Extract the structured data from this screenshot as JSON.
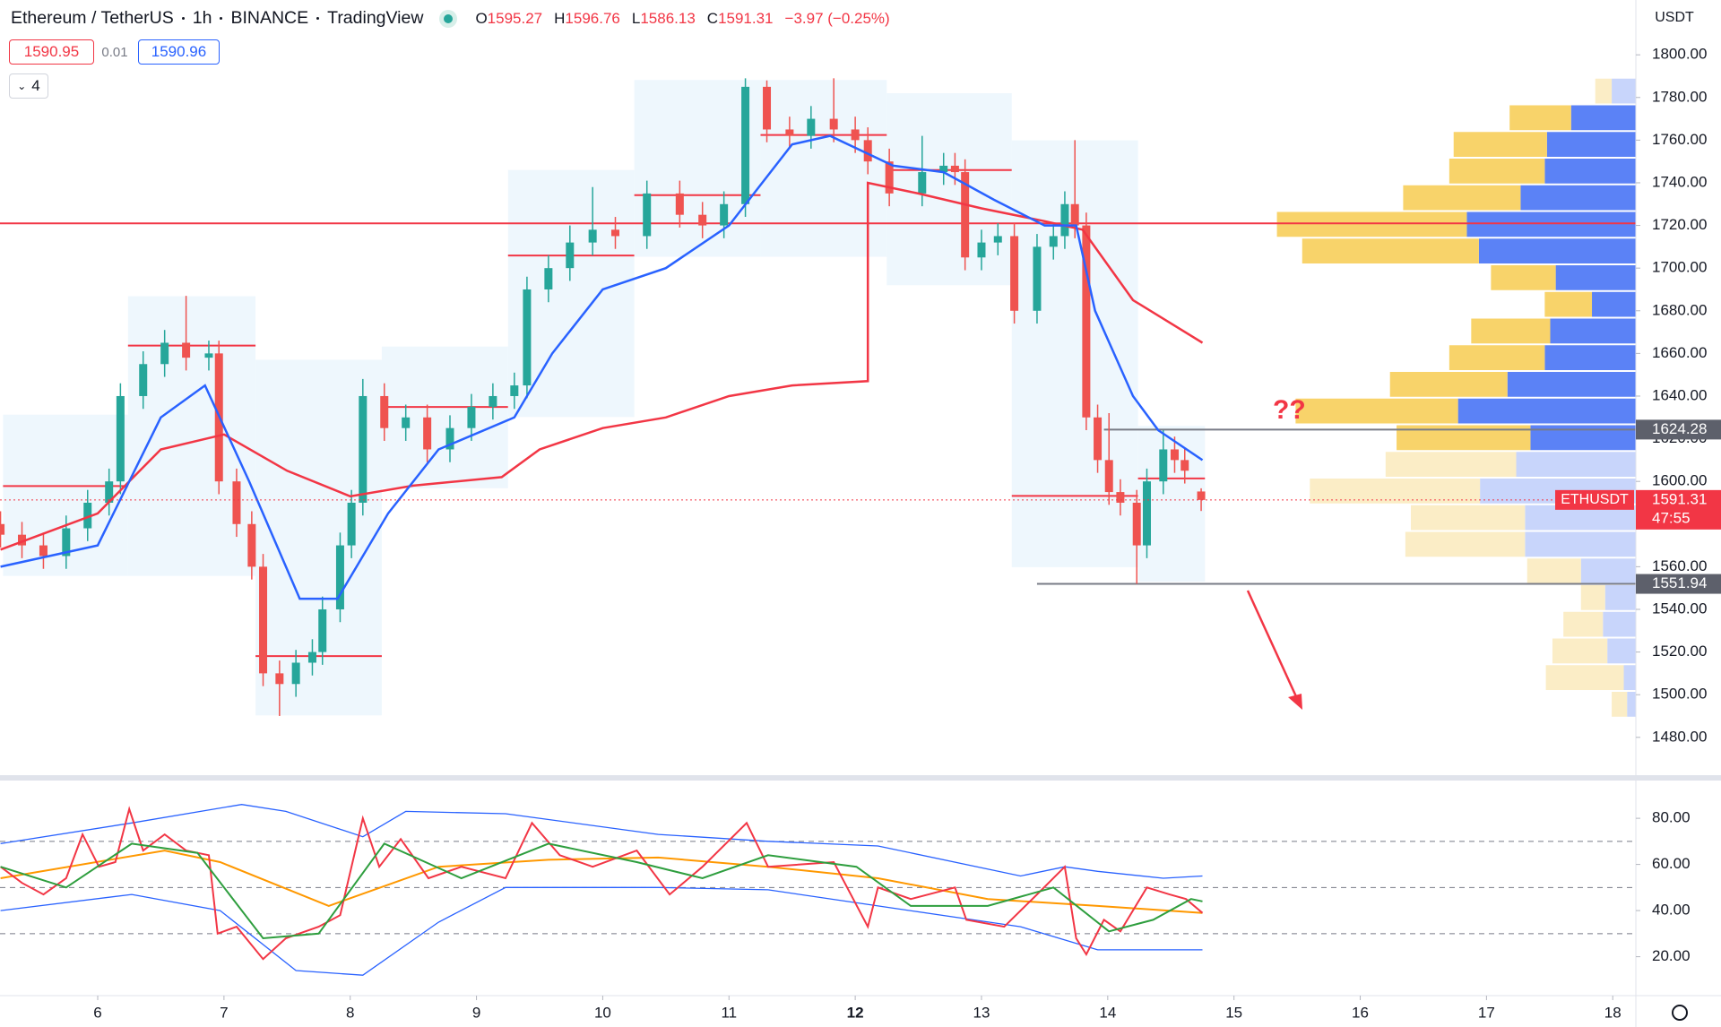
{
  "header": {
    "symbol": "Ethereum / TetherUS",
    "interval": "1h",
    "exchange": "BINANCE",
    "source": "TradingView",
    "ohlc": [
      {
        "key": "O",
        "value": 1595.27
      },
      {
        "key": "H",
        "value": 1596.76
      },
      {
        "key": "L",
        "value": 1586.13
      },
      {
        "key": "C",
        "value": 1591.31
      }
    ],
    "change": "−3.97 (−0.25%)",
    "bid": 1590.95,
    "spread": 0.01,
    "ask": 1590.96,
    "indicators": 4,
    "currency": "USDT"
  },
  "chart_data": [
    {
      "type": "candlestick",
      "up_color": "#26a69a",
      "down_color": "#ef5350",
      "xlim": [
        5.226,
        18.183
      ],
      "ylim": [
        1463.1,
        1825.7
      ],
      "yticks": [
        {
          "value": 1480,
          "label": "1480.00"
        },
        {
          "value": 1500,
          "label": "1500.00"
        },
        {
          "value": 1520,
          "label": "1520.00"
        },
        {
          "value": 1540,
          "label": "1540.00"
        },
        {
          "value": 1560,
          "label": "1560.00"
        },
        {
          "value": 1580,
          "label": "1580.00"
        },
        {
          "value": 1600,
          "label": "1600.00"
        },
        {
          "value": 1620,
          "label": "1620.00"
        },
        {
          "value": 1640,
          "label": "1640.00"
        },
        {
          "value": 1660,
          "label": "1660.00"
        },
        {
          "value": 1680,
          "label": "1680.00"
        },
        {
          "value": 1700,
          "label": "1700.00"
        },
        {
          "value": 1720,
          "label": "1720.00"
        },
        {
          "value": 1740,
          "label": "1740.00"
        },
        {
          "value": 1760,
          "label": "1760.00"
        },
        {
          "value": 1780,
          "label": "1780.00"
        },
        {
          "value": 1800,
          "label": "1800.00"
        }
      ],
      "x": [
        5.23,
        5.4,
        5.57,
        5.75,
        5.92,
        6.09,
        6.18,
        6.36,
        6.53,
        6.7,
        6.88,
        6.96,
        7.1,
        7.22,
        7.31,
        7.44,
        7.57,
        7.7,
        7.78,
        7.92,
        8.01,
        8.1,
        8.27,
        8.44,
        8.61,
        8.79,
        8.96,
        9.13,
        9.3,
        9.4,
        9.57,
        9.74,
        9.92,
        10.1,
        10.35,
        10.61,
        10.79,
        10.96,
        11.13,
        11.3,
        11.48,
        11.65,
        11.83,
        12.0,
        12.1,
        12.27,
        12.53,
        12.7,
        12.79,
        12.87,
        13.0,
        13.13,
        13.26,
        13.44,
        13.57,
        13.66,
        13.74,
        13.83,
        13.92,
        14.01,
        14.1,
        14.23,
        14.31,
        14.44,
        14.53,
        14.61,
        14.74
      ],
      "open": [
        1580,
        1575,
        1570,
        1565,
        1578,
        1590,
        1600,
        1640,
        1655,
        1665,
        1658,
        1660,
        1600,
        1580,
        1560,
        1510,
        1505,
        1515,
        1520,
        1540,
        1570,
        1590,
        1640,
        1625,
        1630,
        1615,
        1625,
        1635,
        1640,
        1645,
        1690,
        1700,
        1712,
        1718,
        1715,
        1735,
        1725,
        1720,
        1730,
        1785,
        1765,
        1762,
        1770,
        1765,
        1760,
        1750,
        1735,
        1745,
        1748,
        1745,
        1705,
        1712,
        1715,
        1680,
        1710,
        1715,
        1730,
        1720,
        1630,
        1610,
        1595,
        1590,
        1570,
        1600,
        1615,
        1610,
        1595.27
      ],
      "high": [
        1586,
        1581,
        1576,
        1584,
        1596,
        1606,
        1646,
        1661,
        1671,
        1687,
        1666,
        1666,
        1606,
        1586,
        1566,
        1516,
        1521,
        1526,
        1546,
        1576,
        1596,
        1648,
        1646,
        1636,
        1636,
        1631,
        1641,
        1646,
        1651,
        1696,
        1706,
        1720,
        1738,
        1724,
        1741,
        1741,
        1731,
        1736,
        1789,
        1788,
        1771,
        1776,
        1789,
        1771,
        1766,
        1756,
        1762,
        1754,
        1754,
        1751,
        1718,
        1721,
        1721,
        1716,
        1721,
        1736,
        1760,
        1726,
        1636,
        1632,
        1601,
        1596,
        1606,
        1624,
        1621,
        1616,
        1596.76
      ],
      "low": [
        1569,
        1564,
        1559,
        1559,
        1572,
        1584,
        1594,
        1634,
        1649,
        1652,
        1652,
        1594,
        1574,
        1554,
        1504,
        1490,
        1499,
        1509,
        1514,
        1534,
        1564,
        1584,
        1619,
        1619,
        1609,
        1609,
        1619,
        1629,
        1634,
        1639,
        1684,
        1694,
        1706,
        1709,
        1709,
        1719,
        1714,
        1714,
        1724,
        1759,
        1756,
        1756,
        1759,
        1754,
        1744,
        1729,
        1729,
        1739,
        1739,
        1699,
        1699,
        1706,
        1674,
        1674,
        1704,
        1709,
        1714,
        1624,
        1604,
        1589,
        1584,
        1552,
        1564,
        1594,
        1604,
        1599,
        1586.13
      ],
      "close": [
        1575,
        1570,
        1565,
        1578,
        1590,
        1600,
        1640,
        1655,
        1665,
        1658,
        1660,
        1600,
        1580,
        1560,
        1510,
        1505,
        1515,
        1520,
        1540,
        1570,
        1590,
        1640,
        1625,
        1630,
        1615,
        1625,
        1635,
        1640,
        1645,
        1690,
        1700,
        1712,
        1718,
        1715,
        1735,
        1725,
        1720,
        1730,
        1785,
        1765,
        1762,
        1770,
        1765,
        1760,
        1750,
        1735,
        1745,
        1748,
        1745,
        1705,
        1712,
        1715,
        1680,
        1710,
        1715,
        1730,
        1720,
        1630,
        1610,
        1595,
        1590,
        1570,
        1600,
        1615,
        1610,
        1605,
        1591.31
      ],
      "series": [
        {
          "color": "#f23645",
          "x": [
            5.23,
            6,
            6.5,
            7,
            7.5,
            8,
            8.5,
            9.2,
            9.5,
            10,
            10.5,
            11,
            11.5,
            12.1,
            12.1,
            12.5,
            13,
            13.5,
            13.8,
            14.2,
            14.75
          ],
          "values": [
            1568,
            1585,
            1615,
            1622,
            1605,
            1593,
            1598,
            1602,
            1615,
            1625,
            1630,
            1640,
            1645,
            1647,
            1740,
            1735,
            1728,
            1722,
            1718,
            1685,
            1665
          ]
        },
        {
          "color": "#2962ff",
          "x": [
            5.23,
            6,
            6.5,
            6.85,
            7.2,
            7.6,
            7.9,
            8.3,
            8.7,
            9.3,
            9.6,
            10,
            10.5,
            11,
            11.5,
            11.8,
            12.3,
            12.7,
            13.1,
            13.5,
            13.75,
            13.9,
            14.2,
            14.4,
            14.75
          ],
          "values": [
            1560,
            1570,
            1630,
            1645,
            1600,
            1545,
            1545,
            1585,
            1615,
            1630,
            1660,
            1690,
            1700,
            1720,
            1758,
            1762,
            1748,
            1745,
            1732,
            1720,
            1720,
            1680,
            1640,
            1624,
            1610
          ]
        }
      ],
      "sessions": [
        {
          "start": 5.25,
          "end": 6.24,
          "high": 1631.3,
          "low": 1555.7,
          "poc": 1597.8
        },
        {
          "start": 6.24,
          "end": 7.25,
          "high": 1686.8,
          "low": 1555.7,
          "poc": 1663.7
        },
        {
          "start": 7.25,
          "end": 8.25,
          "high": 1657,
          "low": 1490.3,
          "poc": 1518.1
        },
        {
          "start": 8.25,
          "end": 9.25,
          "high": 1663.2,
          "low": 1596.8,
          "poc": 1634.9
        },
        {
          "start": 9.25,
          "end": 10.25,
          "high": 1746,
          "low": 1630.2,
          "poc": 1705.9
        },
        {
          "start": 10.25,
          "end": 11.25,
          "high": 1788.2,
          "low": 1705.3,
          "poc": 1734.2
        },
        {
          "start": 11.25,
          "end": 12.25,
          "high": 1788.2,
          "low": 1705.3,
          "poc": 1762.4
        },
        {
          "start": 12.25,
          "end": 13.24,
          "high": 1782,
          "low": 1692,
          "poc": 1746
        },
        {
          "start": 13.24,
          "end": 14.24,
          "high": 1759.9,
          "low": 1559.8,
          "poc": 1593.2
        },
        {
          "start": 14.24,
          "end": 14.77,
          "high": 1626,
          "low": 1553,
          "poc": 1601.4
        }
      ],
      "hlines": [
        {
          "value": 1721,
          "color": "#f23645"
        },
        {
          "value": 1624.28,
          "color": "#787b86",
          "start": 13.97
        },
        {
          "value": 1551.94,
          "color": "#787b86",
          "start": 13.44
        }
      ],
      "axis_labels": [
        {
          "value": 1624.28,
          "color": "#5d606b"
        },
        {
          "value": 1551.94,
          "color": "#5d606b"
        }
      ],
      "last_price": {
        "symbol": "ETHUSDT",
        "value": 1591.31,
        "countdown": "47:55",
        "color": "#f23645"
      },
      "annotation": "??",
      "volume_profile": {
        "row_height": 12.5,
        "buy_color": "#5b82f6",
        "sell_color": "#f8d36a",
        "buy_pale": "#c8d5fb",
        "sell_pale": "#fbedc6",
        "price": [
          1783,
          1770.5,
          1758,
          1745.5,
          1733,
          1720.5,
          1708,
          1695.5,
          1683,
          1670.5,
          1658,
          1645.5,
          1633,
          1620.5,
          1608,
          1595.5,
          1583,
          1570.5,
          1558,
          1545.5,
          1533,
          1520.5,
          1508,
          1495.5
        ],
        "buy": [
          22,
          59,
          81,
          83,
          105,
          154,
          143,
          73,
          40,
          78,
          83,
          117,
          162,
          96,
          109,
          142,
          101,
          101,
          50,
          28,
          30,
          26,
          11,
          8
        ],
        "sell": [
          15,
          56,
          85,
          87,
          107,
          173,
          161,
          59,
          43,
          72,
          87,
          107,
          148,
          122,
          119,
          155,
          104,
          109,
          49,
          22,
          36,
          50,
          71,
          14
        ],
        "value_area": [
          false,
          true,
          true,
          true,
          true,
          true,
          true,
          true,
          true,
          true,
          true,
          true,
          true,
          true,
          false,
          false,
          false,
          false,
          false,
          false,
          false,
          false,
          false,
          false
        ]
      }
    },
    {
      "type": "line",
      "xlim": [
        5.226,
        18.183
      ],
      "ylim": [
        4.3,
        94.8
      ],
      "yticks": [
        {
          "value": 20,
          "label": "20.00"
        },
        {
          "value": 40,
          "label": "40.00"
        },
        {
          "value": 60,
          "label": "60.00"
        },
        {
          "value": 80,
          "label": "80.00"
        }
      ],
      "xticks": [
        6,
        7,
        8,
        9,
        10,
        11,
        12,
        13,
        14,
        15,
        16,
        17,
        18
      ],
      "bold_xtick": 12,
      "levels": [
        70,
        50,
        30
      ],
      "series": [
        {
          "color": "#2962ff",
          "x": [
            5.23,
            6.27,
            7.14,
            7.49,
            8.1,
            8.44,
            9.23,
            10.44,
            11.31,
            12.18,
            13.31,
            13.66,
            13.92,
            14.44,
            14.75
          ],
          "values": [
            69,
            78,
            86,
            83,
            72,
            83,
            82,
            73,
            70,
            68,
            55,
            59,
            57,
            54,
            55
          ]
        },
        {
          "color": "#2962ff",
          "x": [
            5.23,
            6.27,
            6.97,
            7.57,
            8.1,
            8.7,
            9.23,
            10.44,
            11.31,
            12.18,
            13.31,
            13.92,
            14.75
          ],
          "values": [
            40,
            47,
            40,
            14,
            12,
            35,
            50,
            50,
            49,
            42,
            33,
            23,
            23
          ]
        },
        {
          "color": "#ff9800",
          "x": [
            5.23,
            6.53,
            6.97,
            7.83,
            8.7,
            9.57,
            10.44,
            11.31,
            12.18,
            13.05,
            13.92,
            14.75
          ],
          "values": [
            54,
            66,
            61,
            42,
            59,
            62,
            63,
            59,
            54,
            45,
            42,
            39
          ]
        },
        {
          "color": "#f23645",
          "x": [
            5.23,
            5.4,
            5.57,
            5.75,
            5.88,
            6.01,
            6.14,
            6.25,
            6.36,
            6.53,
            6.7,
            6.88,
            6.95,
            7.1,
            7.31,
            7.49,
            7.75,
            7.92,
            8.1,
            8.23,
            8.4,
            8.62,
            8.88,
            9.23,
            9.44,
            9.66,
            9.92,
            10.27,
            10.53,
            10.79,
            11.14,
            11.31,
            11.83,
            12.1,
            12.18,
            12.44,
            12.79,
            12.88,
            13.18,
            13.44,
            13.66,
            13.75,
            13.83,
            13.97,
            14.1,
            14.31,
            14.49,
            14.62,
            14.75
          ],
          "values": [
            59,
            52,
            47,
            54,
            73,
            59,
            61,
            84,
            66,
            73,
            66,
            64,
            30,
            33,
            19,
            28,
            33,
            38,
            80,
            59,
            71,
            54,
            59,
            54,
            78,
            64,
            59,
            66,
            47,
            59,
            78,
            59,
            61,
            33,
            50,
            45,
            50,
            36,
            33,
            47,
            59,
            28,
            21,
            36,
            31,
            50,
            47,
            45,
            39
          ]
        },
        {
          "color": "#2e9e3e",
          "x": [
            5.23,
            5.75,
            6.27,
            6.79,
            7.31,
            7.75,
            8.27,
            8.88,
            9.57,
            10.27,
            10.79,
            11.31,
            12.01,
            12.44,
            13.05,
            13.57,
            14.01,
            14.36,
            14.66,
            14.75
          ],
          "values": [
            59,
            50,
            69,
            65,
            28,
            30,
            69,
            54,
            69,
            61,
            54,
            64,
            59,
            42,
            42,
            50,
            31,
            36,
            45,
            44
          ]
        }
      ]
    }
  ]
}
